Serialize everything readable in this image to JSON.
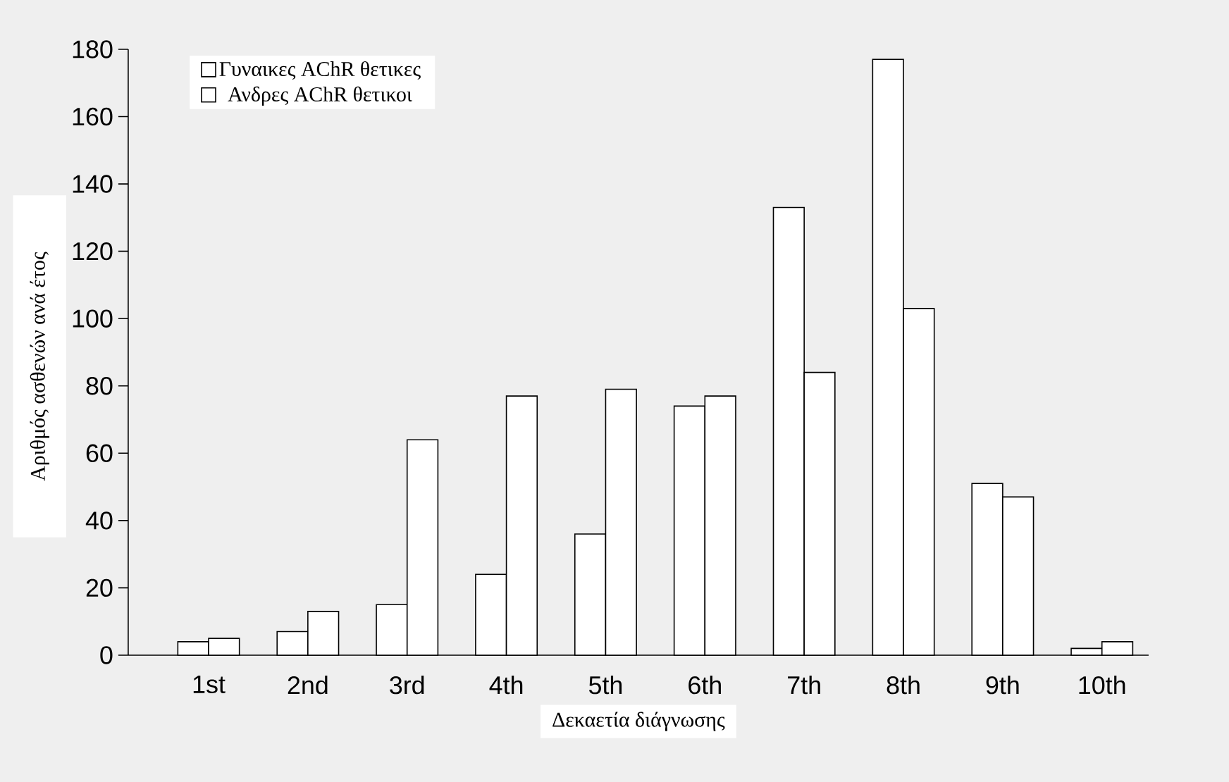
{
  "chart_data": {
    "type": "bar",
    "xlabel": "Δεκαετία διάγνωσης",
    "ylabel": "Αριθμός ασθενών ανά έτος",
    "categories": [
      "1st",
      "2nd",
      "3rd",
      "4th",
      "5th",
      "6th",
      "7th",
      "8th",
      "9th",
      "10th"
    ],
    "series": [
      {
        "name": "Γυναικες AChR θετικες",
        "color": "#ffffff",
        "values": [
          4,
          7,
          15,
          24,
          36,
          74,
          133,
          177,
          51,
          2
        ]
      },
      {
        "name": "Ανδρες AChR θετικοι",
        "color": "#ffffff",
        "values": [
          5,
          13,
          64,
          77,
          79,
          77,
          84,
          103,
          47,
          4
        ]
      }
    ],
    "ylim": [
      0,
      180
    ],
    "yticks": [
      0,
      20,
      40,
      60,
      80,
      100,
      120,
      140,
      160,
      180
    ],
    "legend": "top left",
    "grid": false
  }
}
